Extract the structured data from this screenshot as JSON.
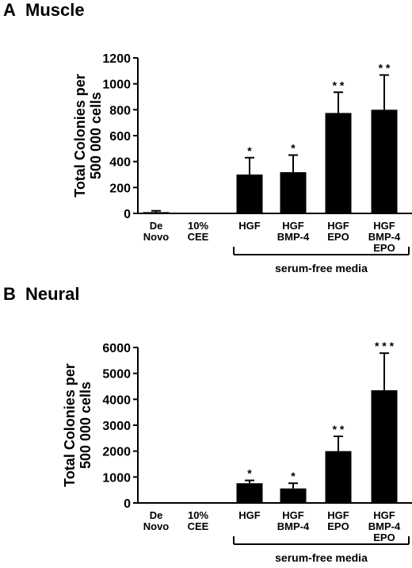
{
  "panels": [
    {
      "letter": "A",
      "title": "Muscle"
    },
    {
      "letter": "B",
      "title": "Neural"
    }
  ],
  "chart_data": [
    {
      "type": "bar",
      "title": "Muscle",
      "panel_label": "A",
      "ylabel": "Total Colonies per 500 000 cells",
      "xlabel": "",
      "ylim": [
        0,
        1200
      ],
      "yticks": [
        0,
        200,
        400,
        600,
        800,
        1000,
        1200
      ],
      "categories": [
        [
          "De",
          "Novo"
        ],
        [
          "10%",
          "CEE"
        ],
        [
          "HGF"
        ],
        [
          "HGF",
          "BMP-4"
        ],
        [
          "HGF",
          "EPO"
        ],
        [
          "HGF",
          "BMP-4",
          "EPO"
        ]
      ],
      "values": [
        10,
        0,
        300,
        318,
        775,
        800
      ],
      "error_upper": [
        20,
        0,
        430,
        450,
        935,
        1068
      ],
      "significance": [
        "",
        "",
        "*",
        "*",
        "* *",
        "* *"
      ],
      "group_bracket": {
        "label": "serum-free media",
        "from_category": 2,
        "to_category": 5
      },
      "bar_color": "#000000",
      "grid": false
    },
    {
      "type": "bar",
      "title": "Neural",
      "panel_label": "B",
      "ylabel": "Total Colonies per 500 000 cells",
      "xlabel": "",
      "ylim": [
        0,
        6000
      ],
      "yticks": [
        0,
        1000,
        2000,
        3000,
        4000,
        5000,
        6000
      ],
      "categories": [
        [
          "De",
          "Novo"
        ],
        [
          "10%",
          "CEE"
        ],
        [
          "HGF"
        ],
        [
          "HGF",
          "BMP-4"
        ],
        [
          "HGF",
          "EPO"
        ],
        [
          "HGF",
          "BMP-4",
          "EPO"
        ]
      ],
      "values": [
        0,
        0,
        760,
        560,
        2000,
        4350
      ],
      "error_upper": [
        0,
        0,
        870,
        760,
        2570,
        5780
      ],
      "significance": [
        "",
        "",
        "*",
        "*",
        "* *",
        "* * *"
      ],
      "group_bracket": {
        "label": "serum-free media",
        "from_category": 2,
        "to_category": 5
      },
      "bar_color": "#000000",
      "grid": false
    }
  ]
}
